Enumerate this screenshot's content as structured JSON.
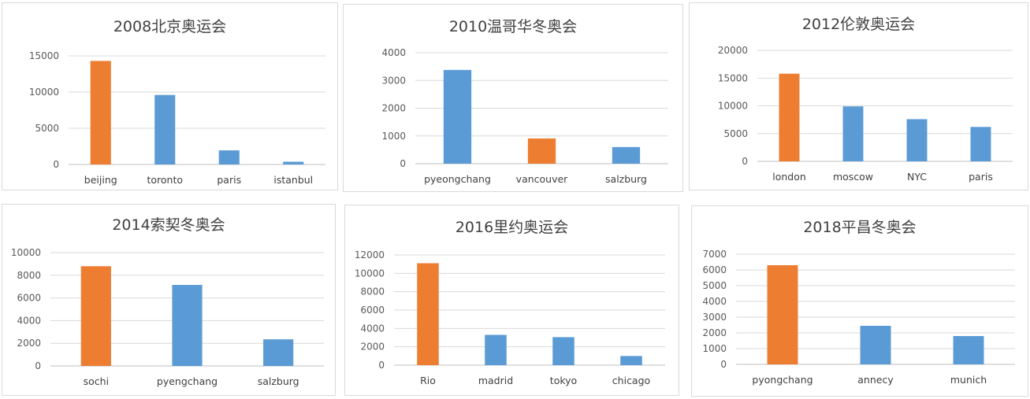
{
  "colors": {
    "highlight": "#ed7d31",
    "normal": "#5b9bd5"
  },
  "chart_data": [
    {
      "type": "bar",
      "title": "2008北京奥运会",
      "categories": [
        "beijing",
        "toronto",
        "paris",
        "istanbul"
      ],
      "values": [
        14300,
        9600,
        1950,
        380
      ],
      "highlight_index": 0,
      "ylim": [
        0,
        15000
      ],
      "yticks": [
        0,
        5000,
        10000,
        15000
      ],
      "grid": true,
      "legend": "none"
    },
    {
      "type": "bar",
      "title": "2010温哥华冬奥会",
      "categories": [
        "pyeongchang",
        "vancouver",
        "salzburg"
      ],
      "values": [
        3380,
        910,
        600
      ],
      "highlight_index": 1,
      "ylim": [
        0,
        4000
      ],
      "yticks": [
        0,
        1000,
        2000,
        3000,
        4000
      ],
      "grid": true,
      "legend": "none"
    },
    {
      "type": "bar",
      "title": "2012伦敦奥运会",
      "categories": [
        "london",
        "moscow",
        "NYC",
        "paris"
      ],
      "values": [
        15800,
        9900,
        7600,
        6200
      ],
      "highlight_index": 0,
      "ylim": [
        0,
        20000
      ],
      "yticks": [
        0,
        5000,
        10000,
        15000,
        20000
      ],
      "grid": true,
      "legend": "none"
    },
    {
      "type": "bar",
      "title": "2014索契冬奥会",
      "categories": [
        "sochi",
        "pyengchang",
        "salzburg"
      ],
      "values": [
        8800,
        7150,
        2350
      ],
      "highlight_index": 0,
      "ylim": [
        0,
        10000
      ],
      "yticks": [
        0,
        2000,
        4000,
        6000,
        8000,
        10000
      ],
      "grid": true,
      "legend": "none"
    },
    {
      "type": "bar",
      "title": "2016里约奥运会",
      "categories": [
        "Rio",
        "madrid",
        "tokyo",
        "chicago"
      ],
      "values": [
        11100,
        3300,
        3050,
        1000
      ],
      "highlight_index": 0,
      "ylim": [
        0,
        12000
      ],
      "yticks": [
        0,
        2000,
        4000,
        6000,
        8000,
        10000,
        12000
      ],
      "grid": true,
      "legend": "none"
    },
    {
      "type": "bar",
      "title": "2018平昌冬奥会",
      "categories": [
        "pyongchang",
        "annecy",
        "munich"
      ],
      "values": [
        6300,
        2450,
        1800
      ],
      "highlight_index": 0,
      "ylim": [
        0,
        7000
      ],
      "yticks": [
        0,
        1000,
        2000,
        3000,
        4000,
        5000,
        6000,
        7000
      ],
      "grid": true,
      "legend": "none"
    }
  ]
}
